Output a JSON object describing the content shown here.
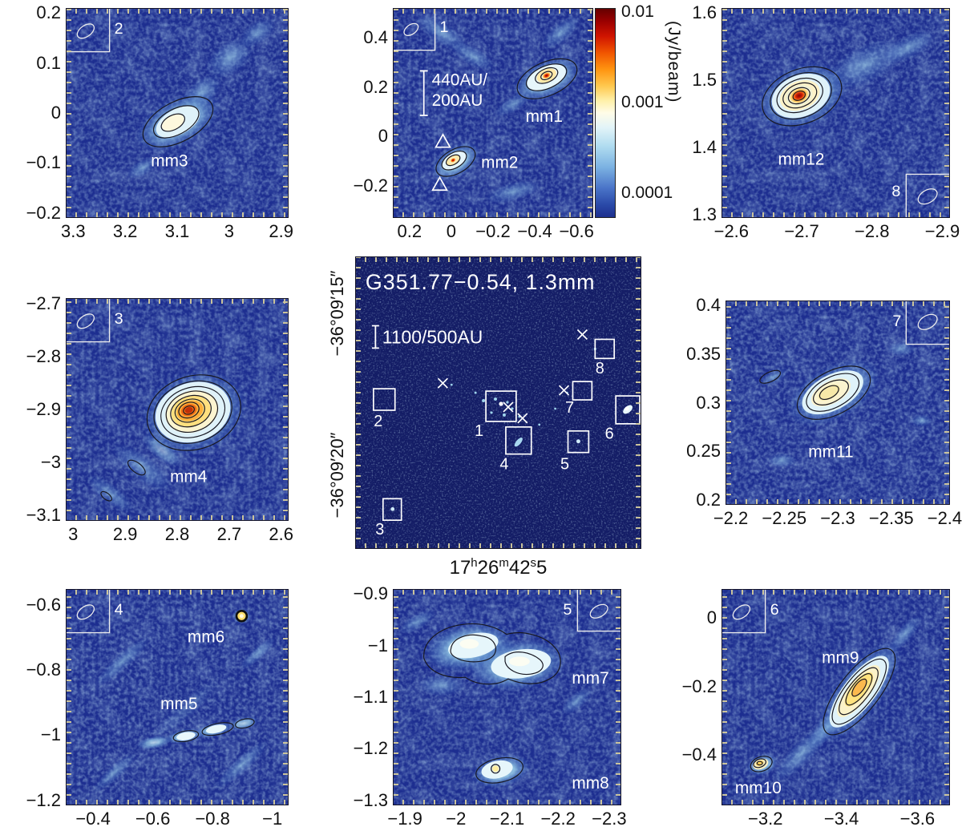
{
  "figure": {
    "title": "G351.77−0.54, 1.3mm",
    "scalebar_overview": "1100/500AU",
    "scalebar_zoom_line1": "440AU/",
    "scalebar_zoom_line2": "200AU",
    "dec_top": "−36°09′15″",
    "dec_bottom": "−36°09′20″",
    "ra": {
      "h": "17",
      "hs": "h",
      "m": "26",
      "ms": "m",
      "s": "42",
      "ss": "s",
      "f": "5"
    },
    "colorbar": {
      "unit": "(Jy/beam)",
      "t_high": "0.01",
      "t_mid": "0.001",
      "t_low": "0.0001"
    }
  },
  "overview": {
    "boxes": [
      "1",
      "2",
      "3",
      "4",
      "5",
      "6",
      "7",
      "8"
    ]
  },
  "panels": {
    "mm1mm2": {
      "beam": "1",
      "label_mm1": "mm1",
      "label_mm2": "mm2",
      "yticks": {
        "labels": [
          "0.4",
          "0.2",
          "0",
          "−0.2"
        ],
        "start": 14,
        "end": 85
      },
      "xticks": {
        "labels": [
          "0.2",
          "0",
          "−0.2",
          "−0.4",
          "−0.6"
        ],
        "start": 8,
        "end": 92
      }
    },
    "mm3": {
      "beam": "2",
      "label": "mm3",
      "yticks": {
        "labels": [
          "0.2",
          "0.1",
          "0",
          "−0.1",
          "−0.2"
        ],
        "start": 2,
        "end": 98
      },
      "xticks": {
        "labels": [
          "3.3",
          "3.2",
          "3.1",
          "3",
          "2.9"
        ],
        "start": 3,
        "end": 97
      }
    },
    "mm4": {
      "beam": "3",
      "label": "mm4",
      "yticks": {
        "labels": [
          "−2.7",
          "−2.8",
          "−2.9",
          "−3",
          "−3.1"
        ],
        "start": 2,
        "end": 98
      },
      "xticks": {
        "labels": [
          "3",
          "2.9",
          "2.8",
          "2.7",
          "2.6"
        ],
        "start": 3,
        "end": 97
      }
    },
    "mm5mm6": {
      "beam": "4",
      "label_mm5": "mm5",
      "label_mm6": "mm6",
      "yticks": {
        "labels": [
          "−0.6",
          "−0.8",
          "−1",
          "−1.2"
        ],
        "start": 7,
        "end": 98
      },
      "xticks": {
        "labels": [
          "−0.4",
          "−0.6",
          "−0.8",
          "−1"
        ],
        "start": 12,
        "end": 93
      }
    },
    "mm7mm8": {
      "beam": "5",
      "label_mm7": "mm7",
      "label_mm8": "mm8",
      "yticks": {
        "labels": [
          "−0.9",
          "−1",
          "−1.1",
          "−1.2",
          "−1.3"
        ],
        "start": 2,
        "end": 98
      },
      "xticks": {
        "labels": [
          "−1.9",
          "−2",
          "−2.1",
          "−2.2",
          "−2.3"
        ],
        "start": 5,
        "end": 95
      }
    },
    "mm9mm10": {
      "beam": "6",
      "label_mm9": "mm9",
      "label_mm10": "mm10",
      "yticks": {
        "labels": [
          "0",
          "−0.2",
          "−0.4"
        ],
        "start": 13,
        "end": 77
      },
      "xticks": {
        "labels": [
          "−3.2",
          "−3.4",
          "−3.6"
        ],
        "start": 19,
        "end": 86
      }
    },
    "mm11": {
      "beam": "7",
      "label": "mm11",
      "yticks": {
        "labels": [
          "0.4",
          "0.35",
          "0.3",
          "0.25",
          "0.2"
        ],
        "start": 2,
        "end": 98
      },
      "xticks": {
        "labels": [
          "−2.2",
          "−2.25",
          "−2.3",
          "−2.35",
          "−2.4"
        ],
        "start": 2,
        "end": 98
      }
    },
    "mm12": {
      "beam": "8",
      "label": "mm12",
      "yticks": {
        "labels": [
          "1.6",
          "1.5",
          "1.4",
          "1.3"
        ],
        "start": 2,
        "end": 99
      },
      "xticks": {
        "labels": [
          "−2.6",
          "−2.7",
          "−2.8",
          "−2.9"
        ],
        "start": 4,
        "end": 97
      }
    }
  },
  "chart_data": [
    {
      "type": "heatmap",
      "panel": "overview",
      "title": "G351.77−0.54, 1.3mm",
      "x_axis": "Right Ascension 17h26m42s5",
      "y_axis_ticks": [
        "−36°09′15″",
        "−36°09′20″"
      ],
      "scalebar": "1100/500AU",
      "zoom_boxes": [
        1,
        2,
        3,
        4,
        5,
        6,
        7,
        8
      ],
      "cross_markers": 5
    },
    {
      "type": "heatmap",
      "panel": "1",
      "beam_id": "1",
      "scalebar": "440AU/200AU",
      "sources": [
        {
          "name": "mm1",
          "x": -0.37,
          "y": 0.23
        },
        {
          "name": "mm2",
          "x": -0.05,
          "y": -0.08
        }
      ],
      "xticks": [
        0.2,
        0,
        -0.2,
        -0.4,
        -0.6
      ],
      "yticks": [
        0.4,
        0.2,
        0,
        -0.2
      ],
      "colorbar": {
        "unit": "Jy/beam",
        "scale": "log",
        "ticks": [
          0.01,
          0.001,
          0.0001
        ]
      }
    },
    {
      "type": "heatmap",
      "panel": "2",
      "beam_id": "2",
      "sources": [
        {
          "name": "mm3",
          "x": 3.12,
          "y": -0.02
        }
      ],
      "xticks": [
        3.3,
        3.2,
        3.1,
        3.0,
        2.9
      ],
      "yticks": [
        0.2,
        0.1,
        0,
        -0.1,
        -0.2
      ]
    },
    {
      "type": "heatmap",
      "panel": "3",
      "beam_id": "3",
      "sources": [
        {
          "name": "mm4",
          "x": 2.78,
          "y": -2.9
        }
      ],
      "xticks": [
        3.0,
        2.9,
        2.8,
        2.7,
        2.6
      ],
      "yticks": [
        -2.7,
        -2.8,
        -2.9,
        -3.0,
        -3.1
      ]
    },
    {
      "type": "heatmap",
      "panel": "4",
      "beam_id": "4",
      "sources": [
        {
          "name": "mm5",
          "x": -0.68,
          "y": -0.95
        },
        {
          "name": "mm6",
          "x": -0.77,
          "y": -0.6
        }
      ],
      "xticks": [
        -0.4,
        -0.6,
        -0.8,
        -1.0
      ],
      "yticks": [
        -0.6,
        -0.8,
        -1.0,
        -1.2
      ]
    },
    {
      "type": "heatmap",
      "panel": "5",
      "beam_id": "5",
      "sources": [
        {
          "name": "mm7",
          "x": -2.05,
          "y": -1.05
        },
        {
          "name": "mm8",
          "x": -2.06,
          "y": -1.23
        }
      ],
      "xticks": [
        -1.9,
        -2.0,
        -2.1,
        -2.2,
        -2.3
      ],
      "yticks": [
        -0.9,
        -1.0,
        -1.1,
        -1.2,
        -1.3
      ]
    },
    {
      "type": "heatmap",
      "panel": "6",
      "beam_id": "6",
      "sources": [
        {
          "name": "mm9",
          "x": -3.44,
          "y": -0.15
        },
        {
          "name": "mm10",
          "x": -3.26,
          "y": -0.39
        }
      ],
      "xticks": [
        -3.2,
        -3.4,
        -3.6
      ],
      "yticks": [
        0,
        -0.2,
        -0.4
      ]
    },
    {
      "type": "heatmap",
      "panel": "7",
      "beam_id": "7",
      "sources": [
        {
          "name": "mm11",
          "x": -2.28,
          "y": 0.3
        }
      ],
      "xticks": [
        -2.2,
        -2.25,
        -2.3,
        -2.35,
        -2.4
      ],
      "yticks": [
        0.4,
        0.35,
        0.3,
        0.25,
        0.2
      ]
    },
    {
      "type": "heatmap",
      "panel": "8",
      "beam_id": "8",
      "sources": [
        {
          "name": "mm12",
          "x": -2.71,
          "y": 1.47
        }
      ],
      "xticks": [
        -2.6,
        -2.7,
        -2.8,
        -2.9
      ],
      "yticks": [
        1.6,
        1.5,
        1.4,
        1.3
      ]
    }
  ]
}
